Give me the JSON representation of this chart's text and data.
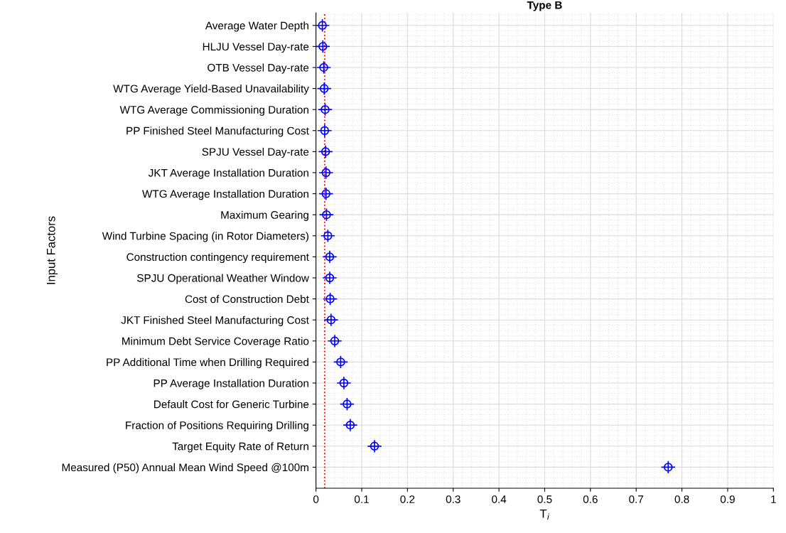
{
  "chart_data": {
    "type": "scatter",
    "orientation": "horizontal",
    "title": "Type B",
    "xlabel": "T$_{i}$",
    "ylabel": "Input Factors",
    "categories": [
      "Average Water Depth",
      "HLJU Vessel Day-rate",
      "OTB Vessel Day-rate",
      "WTG Average Yield-Based Unavailability",
      "WTG Average Commissioning Duration",
      "PP Finished Steel Manufacturing Cost",
      "SPJU Vessel Day-rate",
      "JKT Average Installation Duration",
      "WTG Average Installation Duration",
      "Maximum Gearing",
      "Wind Turbine Spacing (in Rotor Diameters)",
      "Construction contingency requirement",
      "SPJU Operational Weather Window",
      "Cost of Construction Debt",
      "JKT Finished Steel Manufacturing Cost",
      "Minimum Debt Service Coverage Ratio",
      "PP Additional Time when Drilling Required",
      "PP Average Installation Duration",
      "Default Cost for Generic Turbine",
      "Fraction of Positions Requiring Drilling",
      "Target Equity Rate of Return",
      "Measured (P50) Annual Mean Wind Speed @100m"
    ],
    "series": [
      {
        "color": "#0000ff",
        "values": [
          0.014,
          0.015,
          0.017,
          0.018,
          0.02,
          0.019,
          0.021,
          0.022,
          0.022,
          0.023,
          0.026,
          0.03,
          0.03,
          0.031,
          0.033,
          0.041,
          0.054,
          0.061,
          0.068,
          0.075,
          0.128,
          0.77
        ]
      }
    ],
    "marker": "cross",
    "xlim": [
      0,
      1
    ],
    "xticks": [
      0,
      0.1,
      0.2,
      0.3,
      0.4,
      0.5,
      0.6,
      0.7,
      0.8,
      0.9,
      1
    ],
    "grid": true,
    "ref_lines": [
      {
        "axis": "x",
        "value": 0.019,
        "color": "#ff0000",
        "line_style": "dotted"
      }
    ]
  }
}
